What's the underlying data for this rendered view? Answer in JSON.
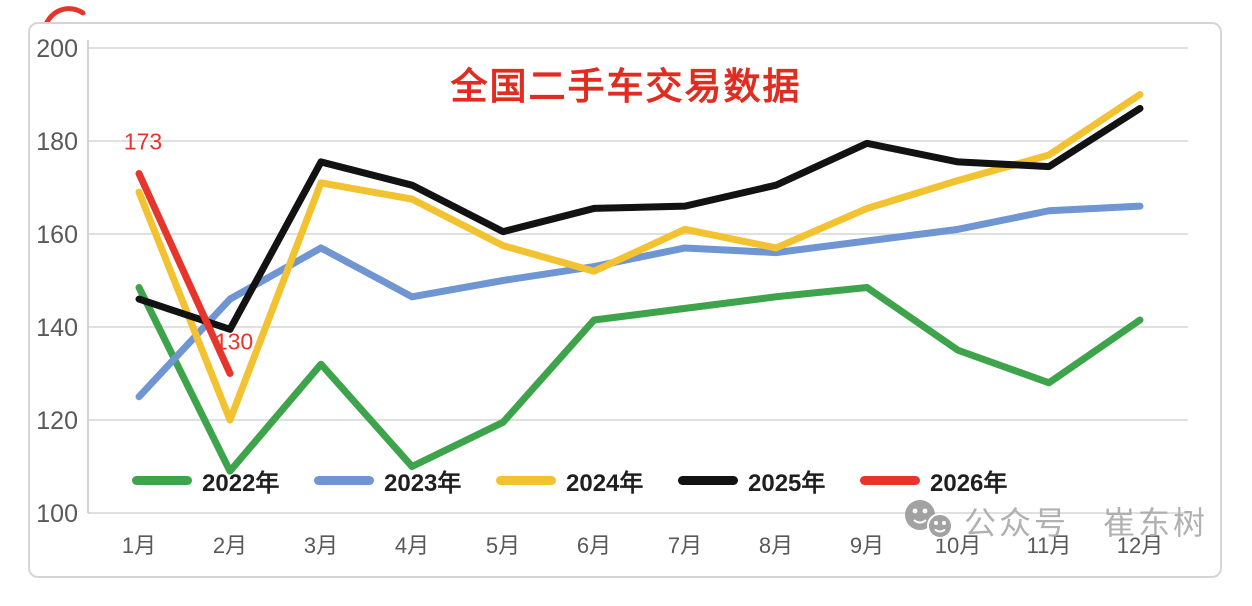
{
  "title": {
    "text": "全国二手车交易数据",
    "color": "#e02d22"
  },
  "watermark": {
    "part1": "公众号",
    "part2": "崔东树",
    "color": "#ababab",
    "icon": "wechat-icon"
  },
  "decor": {
    "top_left_stroke_color": "#e5362c"
  },
  "chart_data": {
    "type": "line",
    "title": "全国二手车交易数据",
    "categories": [
      "1月",
      "2月",
      "3月",
      "4月",
      "5月",
      "6月",
      "7月",
      "8月",
      "9月",
      "10月",
      "11月",
      "12月"
    ],
    "series": [
      {
        "name": "2022年",
        "color": "#3ea44b",
        "values": [
          148.5,
          109,
          132,
          110,
          119.5,
          141.5,
          144,
          146.5,
          148.5,
          135,
          128,
          141.5
        ]
      },
      {
        "name": "2023年",
        "color": "#6f95d2",
        "values": [
          125,
          146,
          157,
          146.5,
          150,
          153,
          157,
          156,
          158.5,
          161,
          165,
          166
        ]
      },
      {
        "name": "2024年",
        "color": "#f3c231",
        "values": [
          169,
          120,
          171,
          167.5,
          157.5,
          152,
          161,
          157,
          165.5,
          171.5,
          177,
          190
        ]
      },
      {
        "name": "2025年",
        "color": "#121212",
        "values": [
          146,
          139.5,
          175.5,
          170.5,
          160.5,
          165.5,
          166,
          170.5,
          179.5,
          175.5,
          174.5,
          187
        ]
      },
      {
        "name": "2026年",
        "color": "#e6352c",
        "values": [
          173,
          130
        ]
      }
    ],
    "ylim": [
      100,
      200
    ],
    "yticks": [
      200,
      180,
      160,
      140,
      120,
      100
    ],
    "grid": true,
    "legend_position": "bottom-inside",
    "axis_text_color": "#595959",
    "gridline_color": "#d6d6d6",
    "point_labels": [
      {
        "series": "2026年",
        "category": "1月",
        "text": "173"
      },
      {
        "series": "2026年",
        "category": "2月",
        "text": "130"
      }
    ]
  }
}
